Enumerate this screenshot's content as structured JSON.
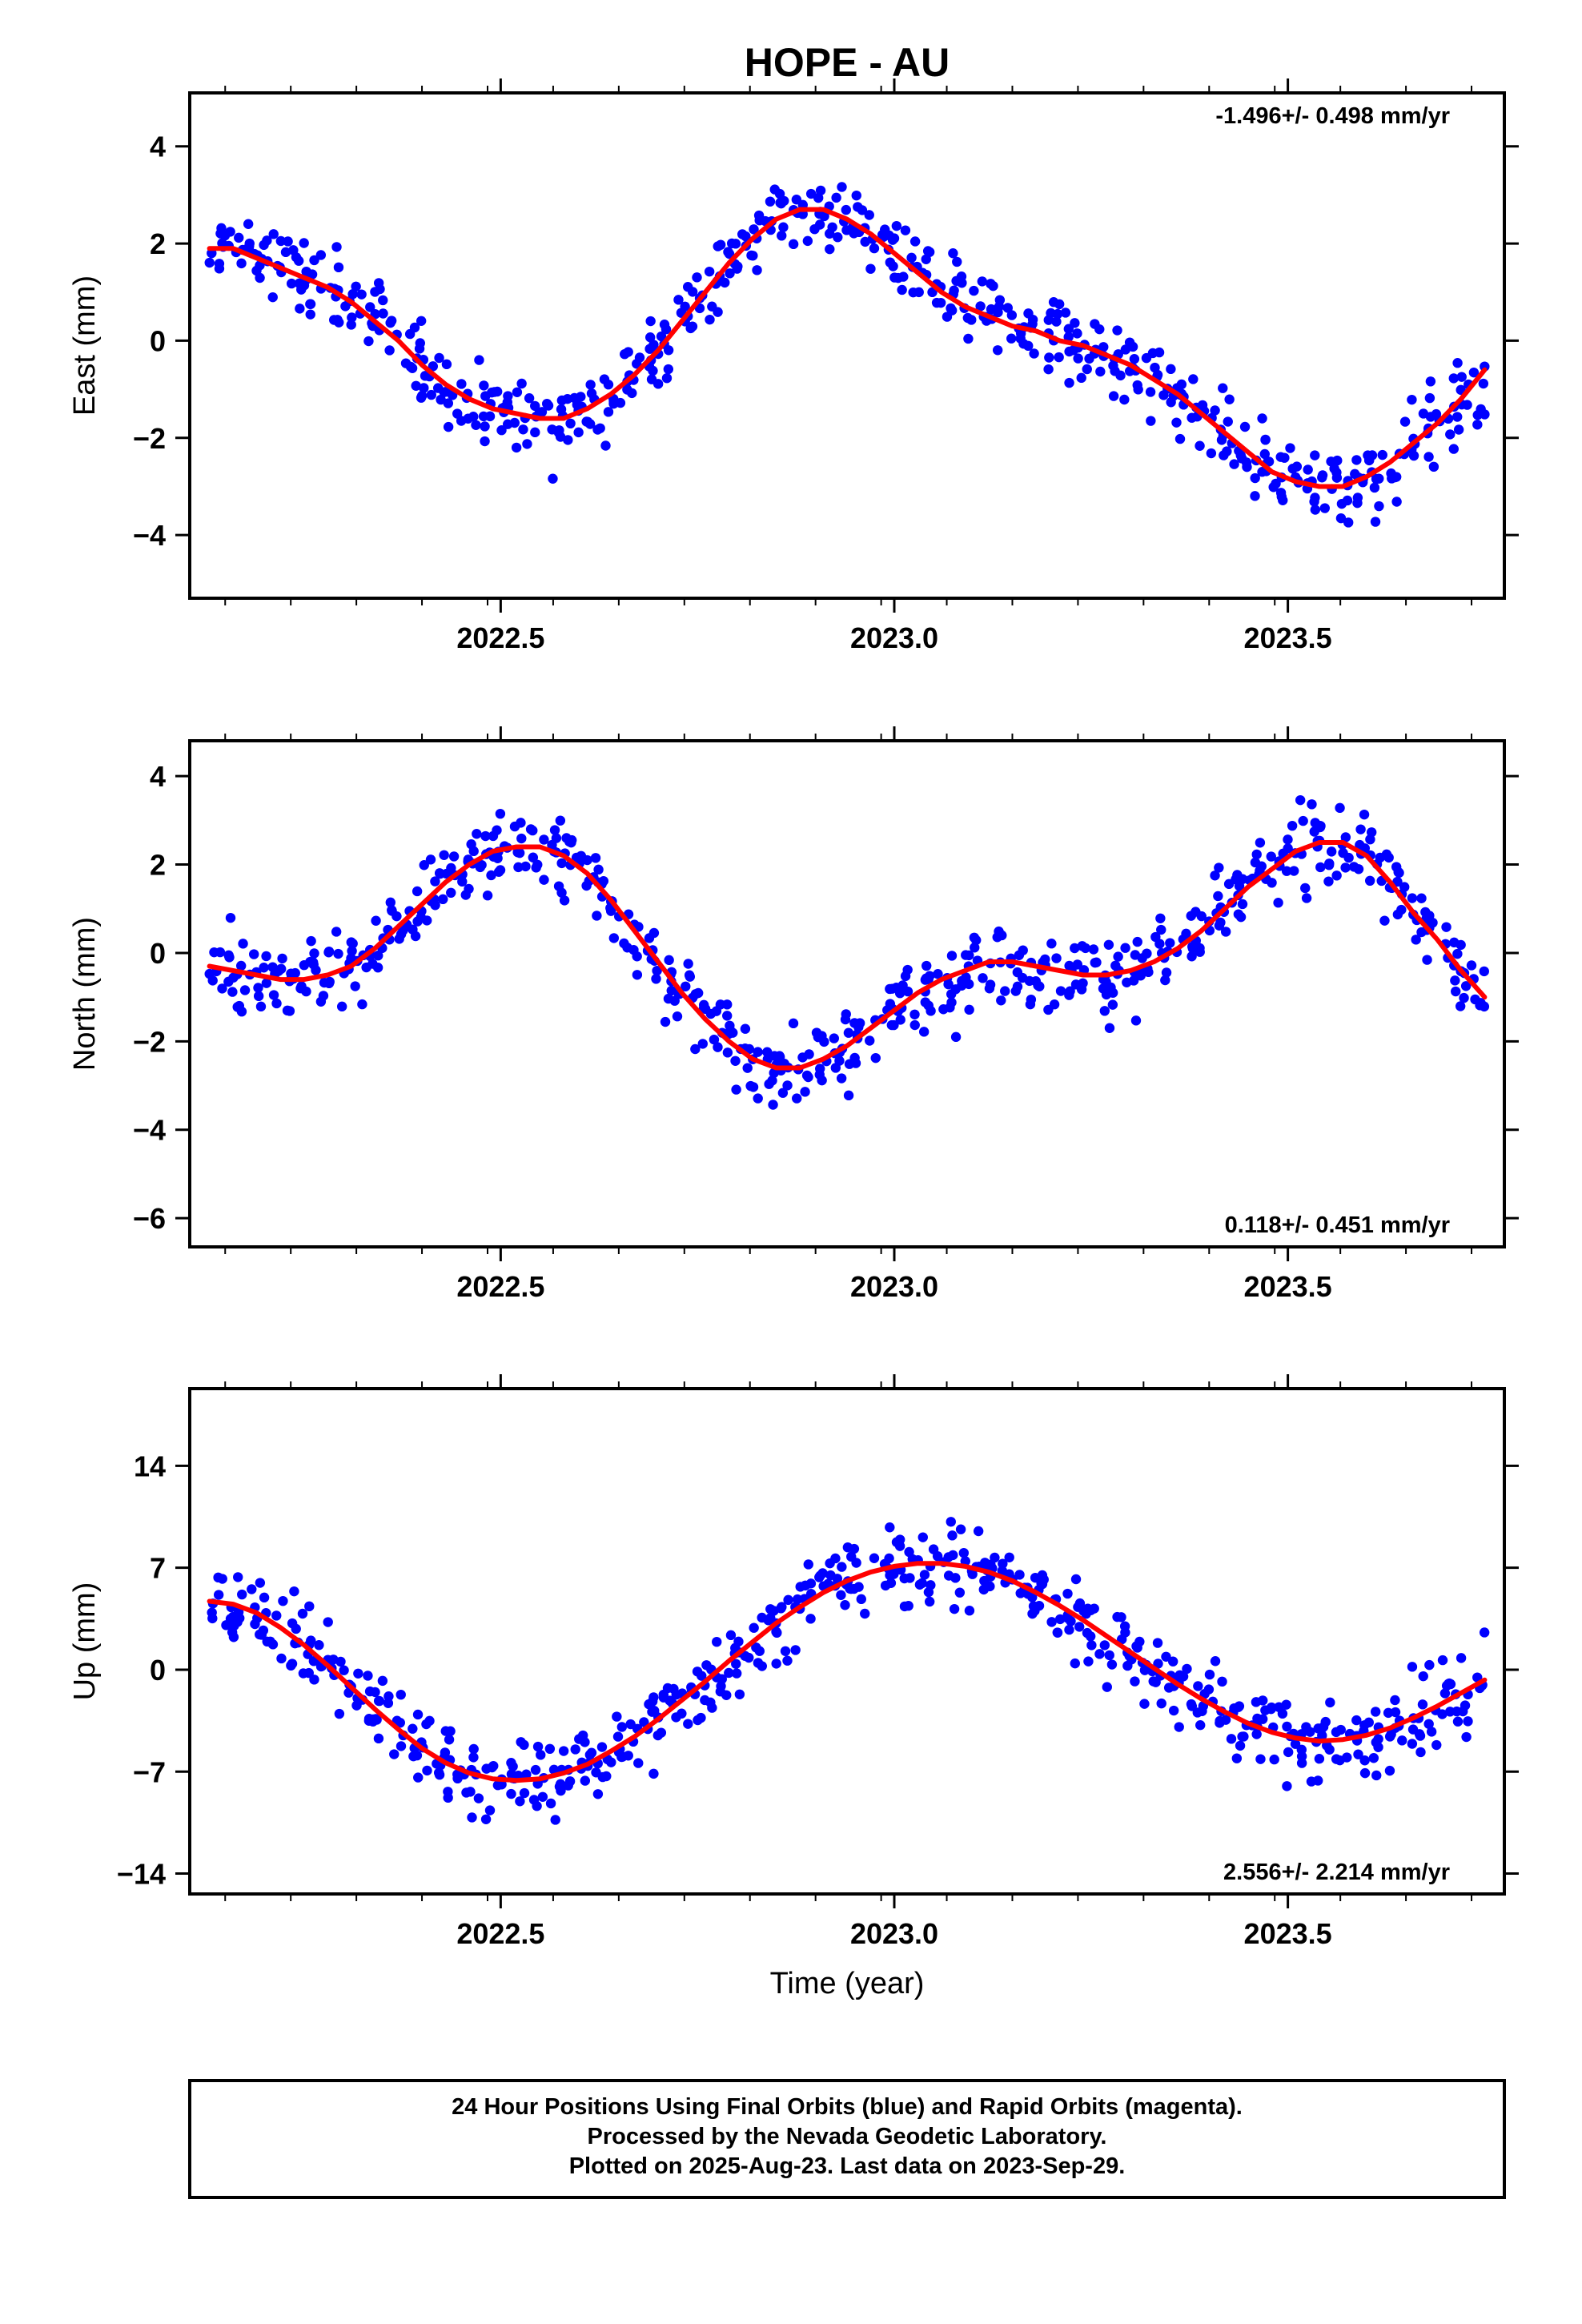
{
  "figure": {
    "title": "HOPE - AU",
    "xlabel": "Time (year)",
    "caption_lines": [
      "24 Hour Positions Using Final Orbits (blue) and Rapid Orbits (magenta).",
      "Processed by the Nevada Geodetic Laboratory.",
      "Plotted on 2025-Aug-23. Last data on 2023-Sep-29."
    ],
    "colors": {
      "points": "#0000ff",
      "model": "#ff0000",
      "frame": "#000000"
    }
  },
  "chart_data": [
    {
      "type": "scatter",
      "name": "east",
      "ylabel": "East (mm)",
      "rate_text": "-1.496+/- 0.498 mm/yr",
      "rate_position": "top-right",
      "xlim": [
        2022.105,
        2023.775
      ],
      "ylim": [
        -5.3,
        5.1
      ],
      "xticks": [
        2022.5,
        2023.0,
        2023.5
      ],
      "xtick_labels": [
        "2022.5",
        "2023.0",
        "2023.5"
      ],
      "yticks": [
        -4,
        -2,
        0,
        2,
        4
      ],
      "ytick_labels": [
        "−4",
        "−2",
        "0",
        "2",
        "4"
      ],
      "grid": false,
      "series": [
        {
          "x": [
            2022.13,
            2022.16,
            2022.19,
            2022.22,
            2022.25,
            2022.28,
            2022.31,
            2022.34,
            2022.37,
            2022.4,
            2022.43,
            2022.46,
            2022.49,
            2022.52,
            2022.55,
            2022.58,
            2022.61,
            2022.64,
            2022.67,
            2022.7,
            2022.73,
            2022.76,
            2022.79,
            2022.82,
            2022.85,
            2022.88,
            2022.91,
            2022.94,
            2022.97,
            2023.0,
            2023.03,
            2023.06,
            2023.09,
            2023.12,
            2023.15,
            2023.18,
            2023.21,
            2023.24,
            2023.27,
            2023.3,
            2023.33,
            2023.36,
            2023.39,
            2023.42,
            2023.45,
            2023.48,
            2023.51,
            2023.54,
            2023.57,
            2023.6,
            2023.63,
            2023.66,
            2023.69,
            2023.72,
            2023.75
          ],
          "y": [
            1.9,
            1.9,
            1.7,
            1.5,
            1.3,
            1.1,
            0.8,
            0.4,
            0.0,
            -0.5,
            -0.9,
            -1.2,
            -1.4,
            -1.5,
            -1.6,
            -1.6,
            -1.4,
            -1.1,
            -0.7,
            -0.2,
            0.4,
            1.0,
            1.6,
            2.1,
            2.5,
            2.7,
            2.7,
            2.5,
            2.2,
            1.8,
            1.4,
            1.0,
            0.7,
            0.5,
            0.3,
            0.2,
            0.0,
            -0.1,
            -0.3,
            -0.5,
            -0.8,
            -1.1,
            -1.5,
            -1.9,
            -2.3,
            -2.7,
            -2.9,
            -3.0,
            -3.0,
            -2.8,
            -2.5,
            -2.1,
            -1.7,
            -1.2,
            -0.6
          ]
        }
      ]
    },
    {
      "type": "scatter",
      "name": "north",
      "ylabel": "North (mm)",
      "rate_text": "0.118+/- 0.451 mm/yr",
      "rate_position": "bottom-right",
      "xlim": [
        2022.105,
        2023.775
      ],
      "ylim": [
        -6.65,
        4.8
      ],
      "xticks": [
        2022.5,
        2023.0,
        2023.5
      ],
      "xtick_labels": [
        "2022.5",
        "2023.0",
        "2023.5"
      ],
      "yticks": [
        -6,
        -4,
        -2,
        0,
        2,
        4
      ],
      "ytick_labels": [
        "−6",
        "−4",
        "−2",
        "0",
        "2",
        "4"
      ],
      "grid": false,
      "series": [
        {
          "x": [
            2022.13,
            2022.16,
            2022.19,
            2022.22,
            2022.25,
            2022.28,
            2022.31,
            2022.34,
            2022.37,
            2022.4,
            2022.43,
            2022.46,
            2022.49,
            2022.52,
            2022.55,
            2022.58,
            2022.61,
            2022.64,
            2022.67,
            2022.7,
            2022.73,
            2022.76,
            2022.79,
            2022.82,
            2022.85,
            2022.88,
            2022.91,
            2022.94,
            2022.97,
            2023.0,
            2023.03,
            2023.06,
            2023.09,
            2023.12,
            2023.15,
            2023.18,
            2023.21,
            2023.24,
            2023.27,
            2023.3,
            2023.33,
            2023.36,
            2023.39,
            2023.42,
            2023.45,
            2023.48,
            2023.51,
            2023.54,
            2023.57,
            2023.6,
            2023.63,
            2023.66,
            2023.69,
            2023.72,
            2023.75
          ],
          "y": [
            -0.3,
            -0.4,
            -0.5,
            -0.6,
            -0.6,
            -0.5,
            -0.3,
            0.1,
            0.6,
            1.1,
            1.6,
            2.0,
            2.3,
            2.4,
            2.4,
            2.2,
            1.8,
            1.2,
            0.5,
            -0.2,
            -0.9,
            -1.5,
            -2.0,
            -2.4,
            -2.6,
            -2.6,
            -2.4,
            -2.1,
            -1.7,
            -1.3,
            -0.9,
            -0.6,
            -0.4,
            -0.2,
            -0.2,
            -0.3,
            -0.4,
            -0.5,
            -0.5,
            -0.4,
            -0.2,
            0.1,
            0.5,
            1.0,
            1.5,
            1.9,
            2.3,
            2.5,
            2.5,
            2.2,
            1.6,
            0.9,
            0.3,
            -0.4,
            -1.0
          ]
        }
      ]
    },
    {
      "type": "scatter",
      "name": "up",
      "ylabel": "Up (mm)",
      "rate_text": "2.556+/- 2.214 mm/yr",
      "rate_position": "bottom-right",
      "xlim": [
        2022.105,
        2023.775
      ],
      "ylim": [
        -15.4,
        19.3
      ],
      "xticks": [
        2022.5,
        2023.0,
        2023.5
      ],
      "xtick_labels": [
        "2022.5",
        "2023.0",
        "2023.5"
      ],
      "yticks": [
        -14,
        -7,
        0,
        7,
        14
      ],
      "ytick_labels": [
        "−14",
        "−7",
        "0",
        "7",
        "14"
      ],
      "grid": false,
      "series": [
        {
          "x": [
            2022.13,
            2022.16,
            2022.19,
            2022.22,
            2022.25,
            2022.28,
            2022.31,
            2022.34,
            2022.37,
            2022.4,
            2022.43,
            2022.46,
            2022.49,
            2022.52,
            2022.55,
            2022.58,
            2022.61,
            2022.64,
            2022.67,
            2022.7,
            2022.73,
            2022.76,
            2022.79,
            2022.82,
            2022.85,
            2022.88,
            2022.91,
            2022.94,
            2022.97,
            2023.0,
            2023.03,
            2023.06,
            2023.09,
            2023.12,
            2023.15,
            2023.18,
            2023.21,
            2023.24,
            2023.27,
            2023.3,
            2023.33,
            2023.36,
            2023.39,
            2023.42,
            2023.45,
            2023.48,
            2023.51,
            2023.54,
            2023.57,
            2023.6,
            2023.63,
            2023.66,
            2023.69,
            2023.72,
            2023.75
          ],
          "y": [
            4.7,
            4.5,
            3.9,
            2.9,
            1.7,
            0.3,
            -1.2,
            -2.7,
            -4.1,
            -5.4,
            -6.4,
            -7.1,
            -7.5,
            -7.6,
            -7.5,
            -7.1,
            -6.5,
            -5.6,
            -4.6,
            -3.4,
            -2.1,
            -0.8,
            0.6,
            1.9,
            3.2,
            4.3,
            5.3,
            6.1,
            6.7,
            7.1,
            7.3,
            7.3,
            7.1,
            6.7,
            6.1,
            5.3,
            4.4,
            3.4,
            2.3,
            1.2,
            0.1,
            -1.0,
            -2.0,
            -2.9,
            -3.7,
            -4.3,
            -4.7,
            -4.9,
            -4.8,
            -4.5,
            -4.0,
            -3.3,
            -2.5,
            -1.6,
            -0.7
          ]
        }
      ]
    }
  ]
}
